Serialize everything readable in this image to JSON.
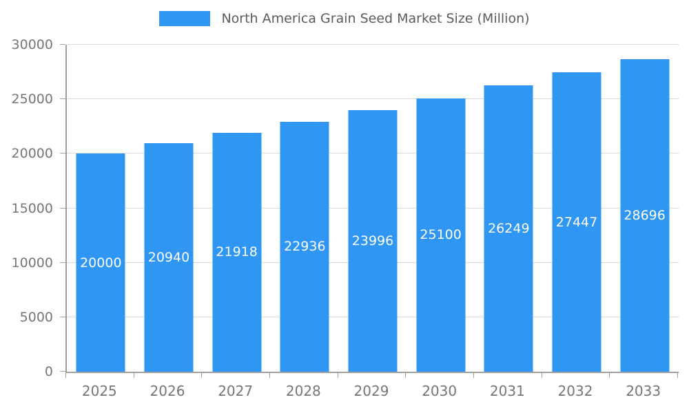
{
  "legend": {
    "label": "North America Grain Seed Market Size (Million)"
  },
  "colors": {
    "bar": "#2F96F3",
    "axis": "#9E9E9E",
    "grid": "#DBDBDB",
    "tick_text": "#757575",
    "legend_text": "#5B5B5B",
    "value_text": "#FFFFFF",
    "background": "#FFFFFF"
  },
  "chart_data": {
    "type": "bar",
    "title": "North America Grain Seed Market Size (Million)",
    "categories": [
      "2025",
      "2026",
      "2027",
      "2028",
      "2029",
      "2030",
      "2031",
      "2032",
      "2033"
    ],
    "values": [
      20000,
      20940,
      21918,
      22936,
      23996,
      25100,
      26249,
      27447,
      28696
    ],
    "xlabel": "",
    "ylabel": "",
    "ylim": [
      0,
      30000
    ],
    "yticks": [
      0,
      5000,
      10000,
      15000,
      20000,
      25000,
      30000
    ],
    "grid": true,
    "legend_position": "top",
    "bar_label_style": "inside-middle-white"
  }
}
